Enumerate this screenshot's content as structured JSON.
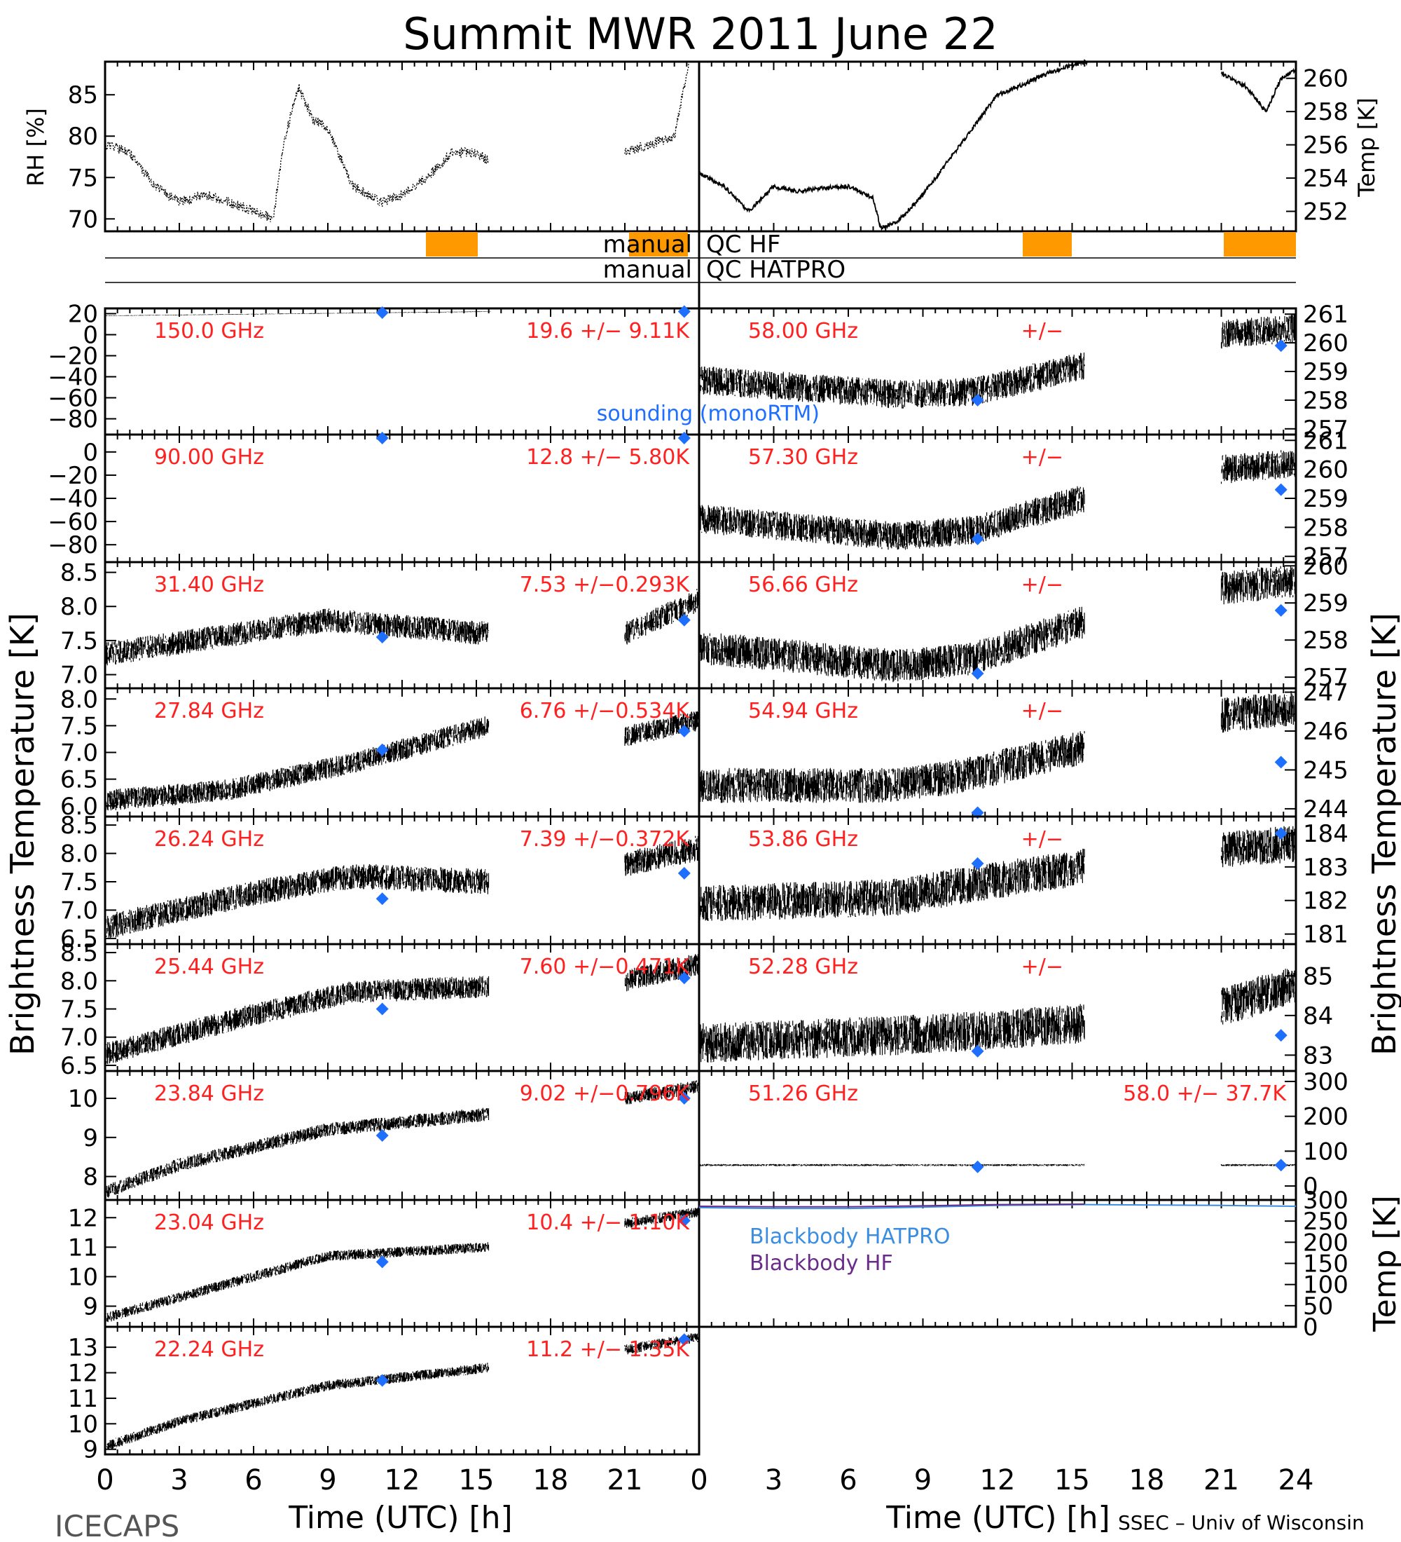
{
  "title": "Summit MWR 2011 June 22",
  "footer_left": "ICECAPS",
  "footer_right": "SSEC – Univ of Wisconsin",
  "x_axis": {
    "label": "Time (UTC) [h]",
    "range": [
      0,
      24
    ],
    "ticks": [
      "0",
      "3",
      "6",
      "9",
      "12",
      "15",
      "18",
      "21",
      "24"
    ]
  },
  "left_ylabel": "Brightness Temperature [K]",
  "right_ylabel": "Brightness Temperature [K]",
  "colors": {
    "data": "#000000",
    "sounding": "#1f6fff",
    "label": "#ff2020",
    "qc_flag": "#ff9900",
    "bb_hatpro": "#3b8de0",
    "bb_hf": "#6a2c8a"
  },
  "met": {
    "rh_label": "RH [%]",
    "rh_ticks": [
      "70",
      "75",
      "80",
      "85"
    ],
    "temp_label": "Temp [K]",
    "temp_ticks": [
      "252",
      "254",
      "256",
      "258",
      "260"
    ]
  },
  "qc": {
    "left_label": "manual",
    "hf_label": "QC HF",
    "left_label2": "manual",
    "hatpro_label": "QC HATPRO"
  },
  "legend": {
    "sounding": "sounding (monoRTM)",
    "bb_hatpro": "Blackbody HATPRO",
    "bb_hf": "Blackbody HF",
    "bb_axis_label": "Temp [K]"
  },
  "chart_data": [
    {
      "type": "scatter",
      "panel": "left-1",
      "freq": "150.0 GHz",
      "stats": "19.6 +/−  9.11K",
      "ticks": [
        "20",
        "0",
        "−20",
        "−40",
        "−60",
        "−80"
      ],
      "ylim": [
        -95,
        25
      ],
      "segments": [
        [
          0,
          15.6
        ]
      ],
      "trend": [
        [
          0,
          18
        ],
        [
          15.6,
          22
        ]
      ],
      "noise": 0.6,
      "sounding": [
        [
          11.2,
          21
        ],
        [
          23.4,
          22
        ]
      ]
    },
    {
      "type": "scatter",
      "panel": "left-2",
      "freq": "90.00 GHz",
      "stats": "12.8 +/−  5.80K",
      "ticks": [
        "0",
        "−20",
        "−40",
        "−60",
        "−80"
      ],
      "ylim": [
        -95,
        15
      ],
      "segments": [],
      "trend": [],
      "noise": 0,
      "sounding": [
        [
          11.2,
          12
        ],
        [
          23.4,
          12
        ]
      ]
    },
    {
      "type": "scatter",
      "panel": "left-3",
      "freq": "31.40 GHz",
      "stats": "7.53 +/−0.293K",
      "ticks": [
        "8.5",
        "8.0",
        "7.5",
        "7.0"
      ],
      "ylim": [
        6.8,
        8.65
      ],
      "segments": [
        [
          0,
          15.5
        ],
        [
          21,
          24
        ]
      ],
      "trend": [
        [
          0,
          7.3
        ],
        [
          9,
          7.8
        ],
        [
          15.5,
          7.6
        ],
        [
          21,
          7.6
        ],
        [
          24,
          8.1
        ]
      ],
      "noise": 0.35,
      "sounding": [
        [
          11.2,
          7.55
        ],
        [
          23.4,
          7.8
        ]
      ]
    },
    {
      "type": "scatter",
      "panel": "left-4",
      "freq": "27.84 GHz",
      "stats": "6.76 +/−0.534K",
      "ticks": [
        "8.0",
        "7.5",
        "7.0",
        "6.5",
        "6.0"
      ],
      "ylim": [
        5.8,
        8.2
      ],
      "segments": [
        [
          0,
          15.5
        ],
        [
          21,
          24
        ]
      ],
      "trend": [
        [
          0,
          6.1
        ],
        [
          5,
          6.3
        ],
        [
          10,
          6.8
        ],
        [
          15.5,
          7.5
        ],
        [
          21,
          7.3
        ],
        [
          24,
          7.6
        ]
      ],
      "noise": 0.4,
      "sounding": [
        [
          11.2,
          7.05
        ],
        [
          23.4,
          7.4
        ]
      ]
    },
    {
      "type": "scatter",
      "panel": "left-5",
      "freq": "26.24 GHz",
      "stats": "7.39 +/−0.372K",
      "ticks": [
        "8.5",
        "8.0",
        "7.5",
        "7.0",
        "6.5"
      ],
      "ylim": [
        6.4,
        8.65
      ],
      "segments": [
        [
          0,
          15.5
        ],
        [
          21,
          24
        ]
      ],
      "trend": [
        [
          0,
          6.7
        ],
        [
          6,
          7.3
        ],
        [
          10,
          7.6
        ],
        [
          15.5,
          7.5
        ],
        [
          21,
          7.8
        ],
        [
          24,
          8.1
        ]
      ],
      "noise": 0.45,
      "sounding": [
        [
          11.2,
          7.2
        ],
        [
          23.4,
          7.65
        ]
      ]
    },
    {
      "type": "scatter",
      "panel": "left-6",
      "freq": "25.44 GHz",
      "stats": "7.60 +/−0.471K",
      "ticks": [
        "8.5",
        "8.0",
        "7.5",
        "7.0",
        "6.5"
      ],
      "ylim": [
        6.4,
        8.65
      ],
      "segments": [
        [
          0,
          15.5
        ],
        [
          21,
          24
        ]
      ],
      "trend": [
        [
          0,
          6.7
        ],
        [
          6,
          7.4
        ],
        [
          10,
          7.8
        ],
        [
          15.5,
          7.9
        ],
        [
          21,
          8.0
        ],
        [
          24,
          8.3
        ]
      ],
      "noise": 0.4,
      "sounding": [
        [
          11.2,
          7.5
        ],
        [
          23.4,
          8.05
        ]
      ]
    },
    {
      "type": "scatter",
      "panel": "left-7",
      "freq": "23.84 GHz",
      "stats": "9.02 +/−0.796K",
      "ticks": [
        "10",
        "9",
        "8"
      ],
      "ylim": [
        7.4,
        10.7
      ],
      "segments": [
        [
          0,
          15.5
        ],
        [
          21,
          24
        ]
      ],
      "trend": [
        [
          0,
          7.6
        ],
        [
          3,
          8.3
        ],
        [
          9,
          9.2
        ],
        [
          15.5,
          9.6
        ],
        [
          21,
          10.0
        ],
        [
          24,
          10.3
        ]
      ],
      "noise": 0.35,
      "sounding": [
        [
          11.2,
          9.05
        ],
        [
          23.4,
          10.0
        ]
      ]
    },
    {
      "type": "scatter",
      "panel": "left-8",
      "freq": "23.04 GHz",
      "stats": "10.4 +/−  1.10K",
      "ticks": [
        "12",
        "11",
        "10",
        "9"
      ],
      "ylim": [
        8.3,
        12.6
      ],
      "segments": [
        [
          0,
          15.5
        ],
        [
          21,
          24
        ]
      ],
      "trend": [
        [
          0,
          8.6
        ],
        [
          3,
          9.3
        ],
        [
          9,
          10.7
        ],
        [
          15.5,
          11.0
        ],
        [
          21,
          11.8
        ],
        [
          24,
          12.2
        ]
      ],
      "noise": 0.35,
      "sounding": [
        [
          11.2,
          10.5
        ],
        [
          23.4,
          11.9
        ]
      ]
    },
    {
      "type": "scatter",
      "panel": "left-9",
      "freq": "22.24 GHz",
      "stats": "11.2 +/−  1.35K",
      "ticks": [
        "13",
        "12",
        "11",
        "10",
        "9"
      ],
      "ylim": [
        8.8,
        13.8
      ],
      "segments": [
        [
          0,
          15.5
        ],
        [
          21,
          24
        ]
      ],
      "trend": [
        [
          0,
          9.1
        ],
        [
          3,
          10.1
        ],
        [
          9,
          11.5
        ],
        [
          15.5,
          12.2
        ],
        [
          21,
          12.9
        ],
        [
          24,
          13.4
        ]
      ],
      "noise": 0.4,
      "sounding": [
        [
          11.2,
          11.7
        ],
        [
          23.4,
          13.3
        ]
      ]
    },
    {
      "type": "scatter",
      "panel": "right-1",
      "freq": "58.00 GHz",
      "stats": "+/−",
      "ticks": [
        "261",
        "260",
        "259",
        "258",
        "257"
      ],
      "ylim": [
        256.8,
        261.2
      ],
      "segments": [
        [
          0,
          15.5
        ],
        [
          21,
          24
        ]
      ],
      "trend": [
        [
          0,
          258.7
        ],
        [
          8,
          258.2
        ],
        [
          11,
          258.3
        ],
        [
          15.5,
          259.2
        ],
        [
          21,
          260.3
        ],
        [
          24,
          260.5
        ]
      ],
      "noise": 1.0,
      "sounding": [
        [
          11.2,
          258.0
        ],
        [
          23.4,
          259.9
        ]
      ]
    },
    {
      "type": "scatter",
      "panel": "right-2",
      "freq": "57.30 GHz",
      "stats": "+/−",
      "ticks": [
        "261",
        "260",
        "259",
        "258",
        "257"
      ],
      "ylim": [
        256.8,
        261.2
      ],
      "segments": [
        [
          0,
          15.5
        ],
        [
          21,
          24
        ]
      ],
      "trend": [
        [
          0,
          258.3
        ],
        [
          8,
          257.7
        ],
        [
          11,
          257.9
        ],
        [
          15.5,
          259.0
        ],
        [
          21,
          260.0
        ],
        [
          24,
          260.2
        ]
      ],
      "noise": 1.0,
      "sounding": [
        [
          11.2,
          257.6
        ],
        [
          23.4,
          259.3
        ]
      ]
    },
    {
      "type": "scatter",
      "panel": "right-3",
      "freq": "56.66 GHz",
      "stats": "+/−",
      "ticks": [
        "260",
        "259",
        "258",
        "257"
      ],
      "ylim": [
        256.7,
        260.1
      ],
      "segments": [
        [
          0,
          15.5
        ],
        [
          21,
          24
        ]
      ],
      "trend": [
        [
          0,
          257.8
        ],
        [
          8,
          257.3
        ],
        [
          11,
          257.5
        ],
        [
          15.5,
          258.5
        ],
        [
          21,
          259.4
        ],
        [
          24,
          259.6
        ]
      ],
      "noise": 0.9,
      "sounding": [
        [
          11.2,
          257.1
        ],
        [
          23.4,
          258.8
        ]
      ]
    },
    {
      "type": "scatter",
      "panel": "right-4",
      "freq": "54.94 GHz",
      "stats": "+/−",
      "ticks": [
        "247",
        "246",
        "245",
        "244"
      ],
      "ylim": [
        243.8,
        247.1
      ],
      "segments": [
        [
          0,
          15.5
        ],
        [
          21,
          24
        ]
      ],
      "trend": [
        [
          0,
          244.6
        ],
        [
          8,
          244.6
        ],
        [
          11,
          244.9
        ],
        [
          15.5,
          245.6
        ],
        [
          21,
          246.4
        ],
        [
          24,
          246.6
        ]
      ],
      "noise": 0.9,
      "sounding": [
        [
          11.2,
          243.9
        ],
        [
          23.4,
          245.2
        ]
      ]
    },
    {
      "type": "scatter",
      "panel": "right-5",
      "freq": "53.86 GHz",
      "stats": "+/−",
      "ticks": [
        "184",
        "183",
        "182",
        "181"
      ],
      "ylim": [
        180.7,
        184.5
      ],
      "segments": [
        [
          0,
          15.5
        ],
        [
          21,
          24
        ]
      ],
      "trend": [
        [
          0,
          181.9
        ],
        [
          8,
          182.1
        ],
        [
          11,
          182.5
        ],
        [
          15.5,
          183.0
        ],
        [
          21,
          183.5
        ],
        [
          24,
          183.7
        ]
      ],
      "noise": 1.1,
      "sounding": [
        [
          11.2,
          183.1
        ],
        [
          23.4,
          184.0
        ]
      ]
    },
    {
      "type": "scatter",
      "panel": "right-6",
      "freq": "52.28 GHz",
      "stats": "+/−",
      "ticks": [
        "85",
        "84",
        "83"
      ],
      "ylim": [
        82.6,
        85.8
      ],
      "segments": [
        [
          0,
          15.5
        ],
        [
          21,
          24
        ]
      ],
      "trend": [
        [
          0,
          83.3
        ],
        [
          8,
          83.5
        ],
        [
          11,
          83.6
        ],
        [
          15.5,
          83.8
        ],
        [
          21,
          84.2
        ],
        [
          24,
          84.8
        ]
      ],
      "noise": 1.0,
      "sounding": [
        [
          11.2,
          83.1
        ],
        [
          23.4,
          83.5
        ]
      ]
    },
    {
      "type": "scatter",
      "panel": "right-7",
      "freq": "51.26 GHz",
      "stats": "58.0 +/−  37.7K",
      "ticks": [
        "300",
        "200",
        "100",
        "0"
      ],
      "ylim": [
        -40,
        330
      ],
      "segments": [
        [
          0,
          15.5
        ],
        [
          21,
          24
        ]
      ],
      "trend": [
        [
          0,
          60
        ],
        [
          15.5,
          60
        ],
        [
          21,
          60
        ],
        [
          24,
          60
        ]
      ],
      "noise": 6,
      "sounding": [
        [
          11.2,
          55
        ],
        [
          23.4,
          60
        ]
      ]
    },
    {
      "type": "line",
      "panel": "right-8",
      "ticks": [
        "300",
        "250",
        "200",
        "150",
        "100",
        "50",
        "0"
      ],
      "ylim": [
        0,
        300
      ],
      "series": [
        {
          "name": "Blackbody HATPRO",
          "values": [
            [
              0,
              282
            ],
            [
              3,
              280
            ],
            [
              6,
              280
            ],
            [
              9,
              283
            ],
            [
              12,
              287
            ],
            [
              15.5,
              289
            ],
            [
              21,
              287
            ],
            [
              24,
              285
            ]
          ]
        },
        {
          "name": "Blackbody HF",
          "values": [
            [
              0,
              285
            ],
            [
              3,
              284
            ],
            [
              6,
              284
            ],
            [
              9,
              286
            ],
            [
              12,
              289
            ],
            [
              15.5,
              290
            ]
          ]
        }
      ]
    },
    {
      "type": "scatter",
      "panel": "rh",
      "ylabel": "RH [%]",
      "ylim": [
        68.5,
        89
      ],
      "values": [
        [
          0,
          79
        ],
        [
          1,
          78
        ],
        [
          2,
          74
        ],
        [
          3,
          72
        ],
        [
          4,
          73
        ],
        [
          5,
          72
        ],
        [
          6,
          71
        ],
        [
          6.8,
          70
        ],
        [
          7.2,
          79
        ],
        [
          7.8,
          86
        ],
        [
          8.4,
          82
        ],
        [
          9,
          81
        ],
        [
          10,
          74
        ],
        [
          11.2,
          72
        ],
        [
          12,
          73
        ],
        [
          13,
          75
        ],
        [
          14,
          78
        ],
        [
          15,
          78
        ],
        [
          15.5,
          77
        ]
      ],
      "values2": [
        [
          21,
          78
        ],
        [
          22,
          79
        ],
        [
          23,
          80
        ],
        [
          23.6,
          89
        ]
      ]
    },
    {
      "type": "line",
      "panel": "temp",
      "ylabel": "Temp [K]",
      "ylim": [
        250.8,
        261
      ],
      "values": [
        [
          0,
          254.3
        ],
        [
          1,
          253.5
        ],
        [
          2,
          252
        ],
        [
          3,
          253.5
        ],
        [
          4,
          253.2
        ],
        [
          5,
          253.4
        ],
        [
          6,
          253.5
        ],
        [
          7,
          252.8
        ],
        [
          7.3,
          251
        ],
        [
          8,
          251.4
        ],
        [
          9,
          253
        ],
        [
          10,
          255
        ],
        [
          11,
          257
        ],
        [
          12,
          259
        ],
        [
          13,
          259.6
        ],
        [
          14,
          260.3
        ],
        [
          15,
          260.8
        ],
        [
          15.6,
          261
        ]
      ],
      "values2": [
        [
          21,
          260.3
        ],
        [
          22,
          259.5
        ],
        [
          22.8,
          258
        ],
        [
          23.4,
          260
        ],
        [
          24,
          260.5
        ]
      ]
    }
  ]
}
